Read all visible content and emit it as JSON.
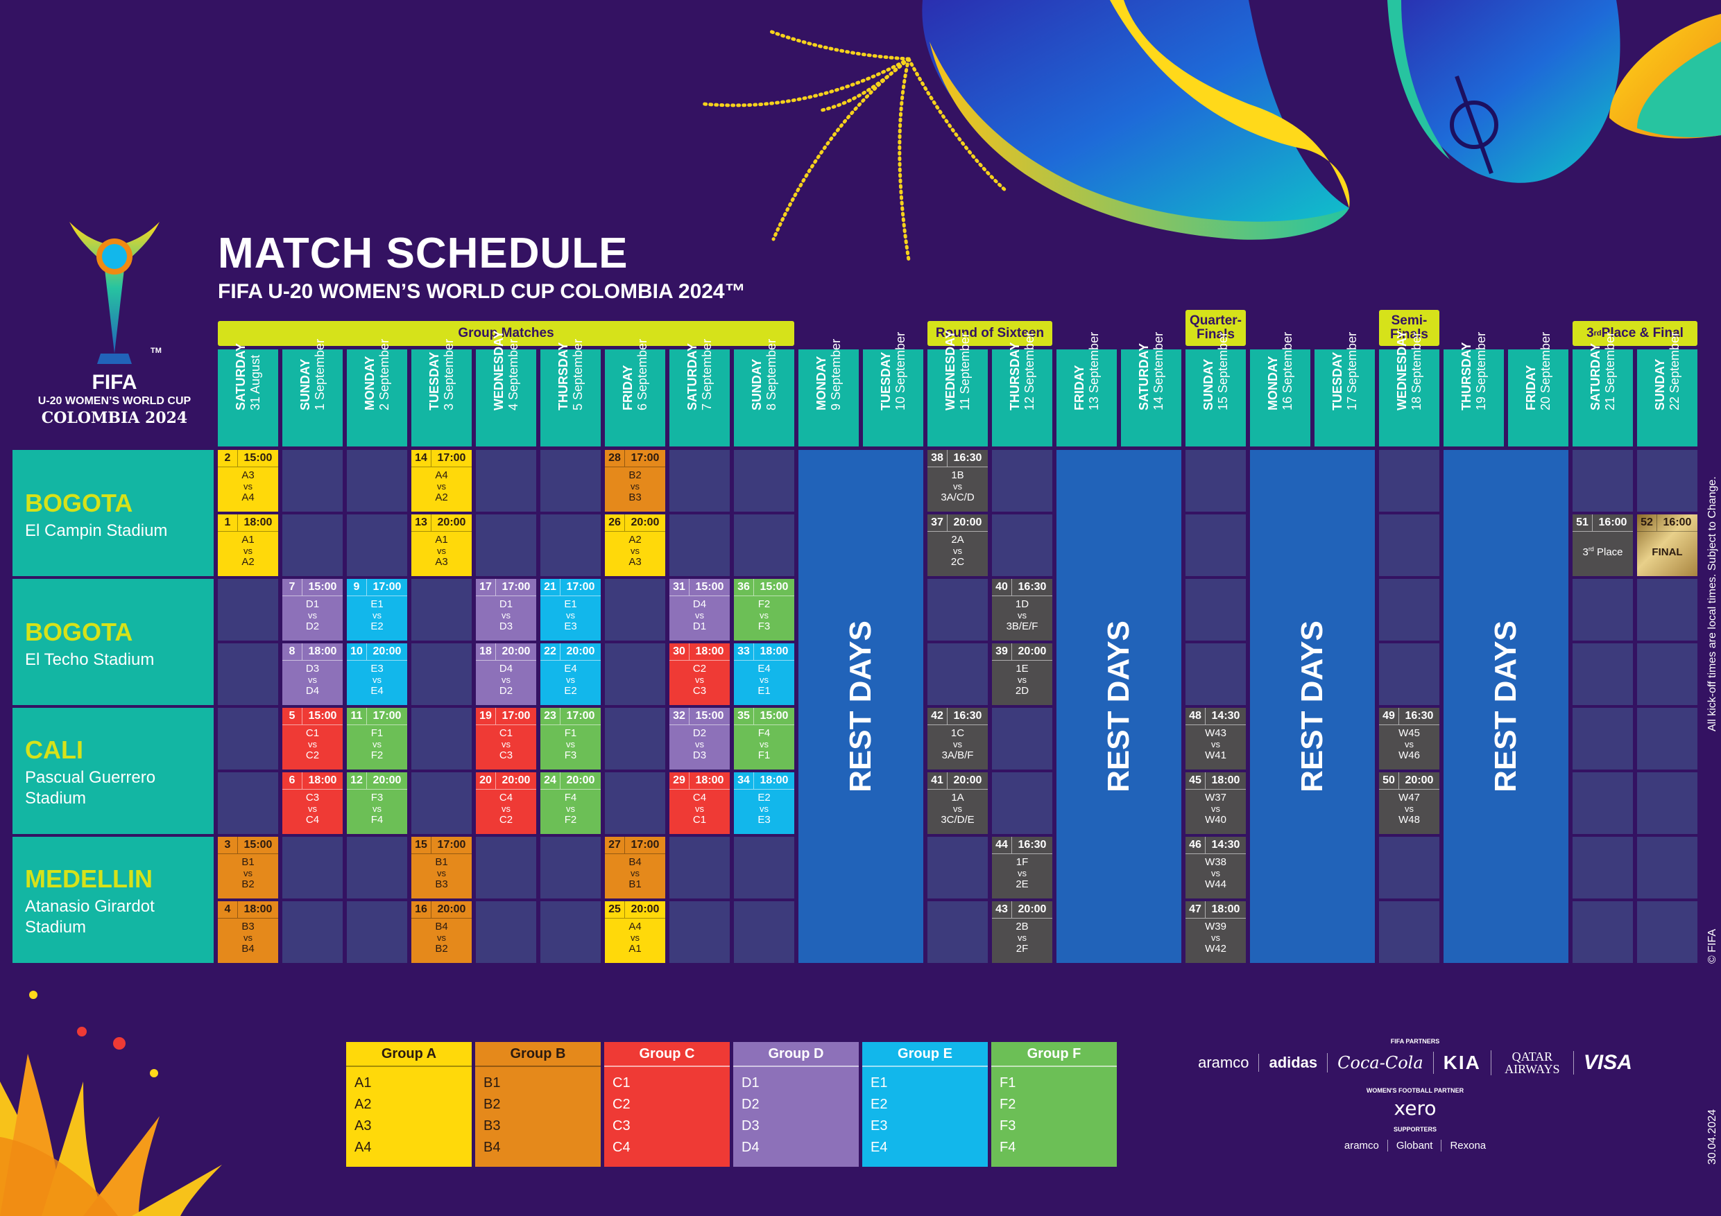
{
  "title": "MATCH SCHEDULE",
  "subtitle": "FIFA U-20 WOMEN’S WORLD CUP COLOMBIA 2024™",
  "logo": {
    "brand": "FIFA",
    "line1": "U-20 WOMEN’S WORLD CUP",
    "line2": "COLOMBIA 2024",
    "tm": "TM"
  },
  "stages": [
    "Group Matches",
    "Round of Sixteen",
    "Quarter-\nFinals",
    "Semi-\nFinals",
    "3rd Place & Final"
  ],
  "days": [
    {
      "day": "SATURDAY",
      "date": "31 August"
    },
    {
      "day": "SUNDAY",
      "date": "1 September"
    },
    {
      "day": "MONDAY",
      "date": "2 September"
    },
    {
      "day": "TUESDAY",
      "date": "3 September"
    },
    {
      "day": "WEDNESDAY",
      "date": "4 September"
    },
    {
      "day": "THURSDAY",
      "date": "5 September"
    },
    {
      "day": "FRIDAY",
      "date": "6 September"
    },
    {
      "day": "SATURDAY",
      "date": "7 September"
    },
    {
      "day": "SUNDAY",
      "date": "8 September"
    },
    {
      "day": "MONDAY",
      "date": "9 September"
    },
    {
      "day": "TUESDAY",
      "date": "10 September"
    },
    {
      "day": "WEDNESDAY",
      "date": "11 September"
    },
    {
      "day": "THURSDAY",
      "date": "12 September"
    },
    {
      "day": "FRIDAY",
      "date": "13 September"
    },
    {
      "day": "SATURDAY",
      "date": "14 September"
    },
    {
      "day": "SUNDAY",
      "date": "15 September"
    },
    {
      "day": "MONDAY",
      "date": "16 September"
    },
    {
      "day": "TUESDAY",
      "date": "17 September"
    },
    {
      "day": "WEDNESDAY",
      "date": "18 September"
    },
    {
      "day": "THURSDAY",
      "date": "19 September"
    },
    {
      "day": "FRIDAY",
      "date": "20 September"
    },
    {
      "day": "SATURDAY",
      "date": "21 September"
    },
    {
      "day": "SUNDAY",
      "date": "22 September"
    }
  ],
  "venues": [
    {
      "city": "BOGOTA",
      "stadium": "El Campin Stadium"
    },
    {
      "city": "BOGOTA",
      "stadium": "El Techo Stadium"
    },
    {
      "city": "CALI",
      "stadium": "Pascual Guerrero Stadium"
    },
    {
      "city": "MEDELLIN",
      "stadium": "Atanasio Girardot Stadium"
    }
  ],
  "rest_label": "REST DAYS",
  "rest_days": [
    [
      9,
      10
    ],
    [
      13,
      14
    ],
    [
      16,
      17
    ],
    [
      19,
      20
    ]
  ],
  "colors": {
    "A": "#ffd90a",
    "B": "#e5891b",
    "C": "#ef3a35",
    "D": "#8d71b9",
    "E": "#12b7eb",
    "F": "#6cbf56",
    "K": "#4f4d4e",
    "FINAL": "#c9a356",
    "empty": "#3d3b7c",
    "rest": "#2163b9",
    "teal": "#13b6a3",
    "bg": "#341262",
    "stage": "#d6e21a"
  },
  "matches": [
    {
      "no": "2",
      "time": "15:00",
      "t1": "A3",
      "t2": "A4",
      "day": 0,
      "row": 0,
      "c": "A"
    },
    {
      "no": "1",
      "time": "18:00",
      "t1": "A1",
      "t2": "A2",
      "day": 0,
      "row": 1,
      "c": "A"
    },
    {
      "no": "14",
      "time": "17:00",
      "t1": "A4",
      "t2": "A2",
      "day": 3,
      "row": 0,
      "c": "A"
    },
    {
      "no": "13",
      "time": "20:00",
      "t1": "A1",
      "t2": "A3",
      "day": 3,
      "row": 1,
      "c": "A"
    },
    {
      "no": "28",
      "time": "17:00",
      "t1": "B2",
      "t2": "B3",
      "day": 6,
      "row": 0,
      "c": "B"
    },
    {
      "no": "26",
      "time": "20:00",
      "t1": "A2",
      "t2": "A3",
      "day": 6,
      "row": 1,
      "c": "A"
    },
    {
      "no": "38",
      "time": "16:30",
      "t1": "1B",
      "t2": "3A/C/D",
      "day": 11,
      "row": 0,
      "c": "K"
    },
    {
      "no": "37",
      "time": "20:00",
      "t1": "2A",
      "t2": "2C",
      "day": 11,
      "row": 1,
      "c": "K"
    },
    {
      "no": "51",
      "time": "16:00",
      "text": "3rd Place",
      "day": 21,
      "row": 1,
      "c": "K"
    },
    {
      "no": "52",
      "time": "16:00",
      "text": "FINAL",
      "day": 22,
      "row": 1,
      "c": "FINAL"
    },
    {
      "no": "7",
      "time": "15:00",
      "t1": "D1",
      "t2": "D2",
      "day": 1,
      "row": 2,
      "c": "D"
    },
    {
      "no": "8",
      "time": "18:00",
      "t1": "D3",
      "t2": "D4",
      "day": 1,
      "row": 3,
      "c": "D"
    },
    {
      "no": "9",
      "time": "17:00",
      "t1": "E1",
      "t2": "E2",
      "day": 2,
      "row": 2,
      "c": "E"
    },
    {
      "no": "10",
      "time": "20:00",
      "t1": "E3",
      "t2": "E4",
      "day": 2,
      "row": 3,
      "c": "E"
    },
    {
      "no": "17",
      "time": "17:00",
      "t1": "D1",
      "t2": "D3",
      "day": 4,
      "row": 2,
      "c": "D"
    },
    {
      "no": "18",
      "time": "20:00",
      "t1": "D4",
      "t2": "D2",
      "day": 4,
      "row": 3,
      "c": "D"
    },
    {
      "no": "21",
      "time": "17:00",
      "t1": "E1",
      "t2": "E3",
      "day": 5,
      "row": 2,
      "c": "E"
    },
    {
      "no": "22",
      "time": "20:00",
      "t1": "E4",
      "t2": "E2",
      "day": 5,
      "row": 3,
      "c": "E"
    },
    {
      "no": "31",
      "time": "15:00",
      "t1": "D4",
      "t2": "D1",
      "day": 7,
      "row": 2,
      "c": "D"
    },
    {
      "no": "30",
      "time": "18:00",
      "t1": "C2",
      "t2": "C3",
      "day": 7,
      "row": 3,
      "c": "C"
    },
    {
      "no": "36",
      "time": "15:00",
      "t1": "F2",
      "t2": "F3",
      "day": 8,
      "row": 2,
      "c": "F"
    },
    {
      "no": "33",
      "time": "18:00",
      "t1": "E4",
      "t2": "E1",
      "day": 8,
      "row": 3,
      "c": "E"
    },
    {
      "no": "40",
      "time": "16:30",
      "t1": "1D",
      "t2": "3B/E/F",
      "day": 12,
      "row": 2,
      "c": "K"
    },
    {
      "no": "39",
      "time": "20:00",
      "t1": "1E",
      "t2": "2D",
      "day": 12,
      "row": 3,
      "c": "K"
    },
    {
      "no": "5",
      "time": "15:00",
      "t1": "C1",
      "t2": "C2",
      "day": 1,
      "row": 4,
      "c": "C"
    },
    {
      "no": "6",
      "time": "18:00",
      "t1": "C3",
      "t2": "C4",
      "day": 1,
      "row": 5,
      "c": "C"
    },
    {
      "no": "11",
      "time": "17:00",
      "t1": "F1",
      "t2": "F2",
      "day": 2,
      "row": 4,
      "c": "F"
    },
    {
      "no": "12",
      "time": "20:00",
      "t1": "F3",
      "t2": "F4",
      "day": 2,
      "row": 5,
      "c": "F"
    },
    {
      "no": "19",
      "time": "17:00",
      "t1": "C1",
      "t2": "C3",
      "day": 4,
      "row": 4,
      "c": "C"
    },
    {
      "no": "20",
      "time": "20:00",
      "t1": "C4",
      "t2": "C2",
      "day": 4,
      "row": 5,
      "c": "C"
    },
    {
      "no": "23",
      "time": "17:00",
      "t1": "F1",
      "t2": "F3",
      "day": 5,
      "row": 4,
      "c": "F"
    },
    {
      "no": "24",
      "time": "20:00",
      "t1": "F4",
      "t2": "F2",
      "day": 5,
      "row": 5,
      "c": "F"
    },
    {
      "no": "32",
      "time": "15:00",
      "t1": "D2",
      "t2": "D3",
      "day": 7,
      "row": 4,
      "c": "D"
    },
    {
      "no": "29",
      "time": "18:00",
      "t1": "C4",
      "t2": "C1",
      "day": 7,
      "row": 5,
      "c": "C"
    },
    {
      "no": "35",
      "time": "15:00",
      "t1": "F4",
      "t2": "F1",
      "day": 8,
      "row": 4,
      "c": "F"
    },
    {
      "no": "34",
      "time": "18:00",
      "t1": "E2",
      "t2": "E3",
      "day": 8,
      "row": 5,
      "c": "E"
    },
    {
      "no": "42",
      "time": "16:30",
      "t1": "1C",
      "t2": "3A/B/F",
      "day": 11,
      "row": 4,
      "c": "K"
    },
    {
      "no": "41",
      "time": "20:00",
      "t1": "1A",
      "t2": "3C/D/E",
      "day": 11,
      "row": 5,
      "c": "K"
    },
    {
      "no": "48",
      "time": "14:30",
      "t1": "W43",
      "t2": "W41",
      "day": 15,
      "row": 4,
      "c": "K"
    },
    {
      "no": "45",
      "time": "18:00",
      "t1": "W37",
      "t2": "W40",
      "day": 15,
      "row": 5,
      "c": "K"
    },
    {
      "no": "49",
      "time": "16:30",
      "t1": "W45",
      "t2": "W46",
      "day": 18,
      "row": 4,
      "c": "K"
    },
    {
      "no": "50",
      "time": "20:00",
      "t1": "W47",
      "t2": "W48",
      "day": 18,
      "row": 5,
      "c": "K"
    },
    {
      "no": "3",
      "time": "15:00",
      "t1": "B1",
      "t2": "B2",
      "day": 0,
      "row": 6,
      "c": "B"
    },
    {
      "no": "4",
      "time": "18:00",
      "t1": "B3",
      "t2": "B4",
      "day": 0,
      "row": 7,
      "c": "B"
    },
    {
      "no": "15",
      "time": "17:00",
      "t1": "B1",
      "t2": "B3",
      "day": 3,
      "row": 6,
      "c": "B"
    },
    {
      "no": "16",
      "time": "20:00",
      "t1": "B4",
      "t2": "B2",
      "day": 3,
      "row": 7,
      "c": "B"
    },
    {
      "no": "27",
      "time": "17:00",
      "t1": "B4",
      "t2": "B1",
      "day": 6,
      "row": 6,
      "c": "B"
    },
    {
      "no": "25",
      "time": "20:00",
      "t1": "A4",
      "t2": "A1",
      "day": 6,
      "row": 7,
      "c": "A"
    },
    {
      "no": "44",
      "time": "16:30",
      "t1": "1F",
      "t2": "2E",
      "day": 12,
      "row": 6,
      "c": "K"
    },
    {
      "no": "43",
      "time": "20:00",
      "t1": "2B",
      "t2": "2F",
      "day": 12,
      "row": 7,
      "c": "K"
    },
    {
      "no": "46",
      "time": "14:30",
      "t1": "W38",
      "t2": "W44",
      "day": 15,
      "row": 6,
      "c": "K"
    },
    {
      "no": "47",
      "time": "18:00",
      "t1": "W39",
      "t2": "W42",
      "day": 15,
      "row": 7,
      "c": "K"
    }
  ],
  "vs_label": "vs",
  "groups": [
    {
      "name": "Group A",
      "c": "A",
      "teams": [
        "A1",
        "A2",
        "A3",
        "A4"
      ]
    },
    {
      "name": "Group B",
      "c": "B",
      "teams": [
        "B1",
        "B2",
        "B3",
        "B4"
      ]
    },
    {
      "name": "Group C",
      "c": "C",
      "teams": [
        "C1",
        "C2",
        "C3",
        "C4"
      ]
    },
    {
      "name": "Group D",
      "c": "D",
      "teams": [
        "D1",
        "D2",
        "D3",
        "D4"
      ]
    },
    {
      "name": "Group E",
      "c": "E",
      "teams": [
        "E1",
        "E2",
        "E3",
        "E4"
      ]
    },
    {
      "name": "Group F",
      "c": "F",
      "teams": [
        "F1",
        "F2",
        "F3",
        "F4"
      ]
    }
  ],
  "partners": {
    "fifa_partners_label": "FIFA PARTNERS",
    "fifa_partners": [
      "aramco",
      "adidas",
      "Coca-Cola",
      "KIA",
      "QATAR AIRWAYS",
      "VISA"
    ],
    "womens_label": "WOMEN'S FOOTBALL PARTNER",
    "womens": "xero",
    "supporters_label": "SUPPORTERS",
    "supporters": [
      "aramco",
      "Globant",
      "Rexona"
    ]
  },
  "side_note": "All kick-off times are local times. Subject to Change.",
  "copyright": "© FIFA",
  "date_stamp": "30.04.2024"
}
